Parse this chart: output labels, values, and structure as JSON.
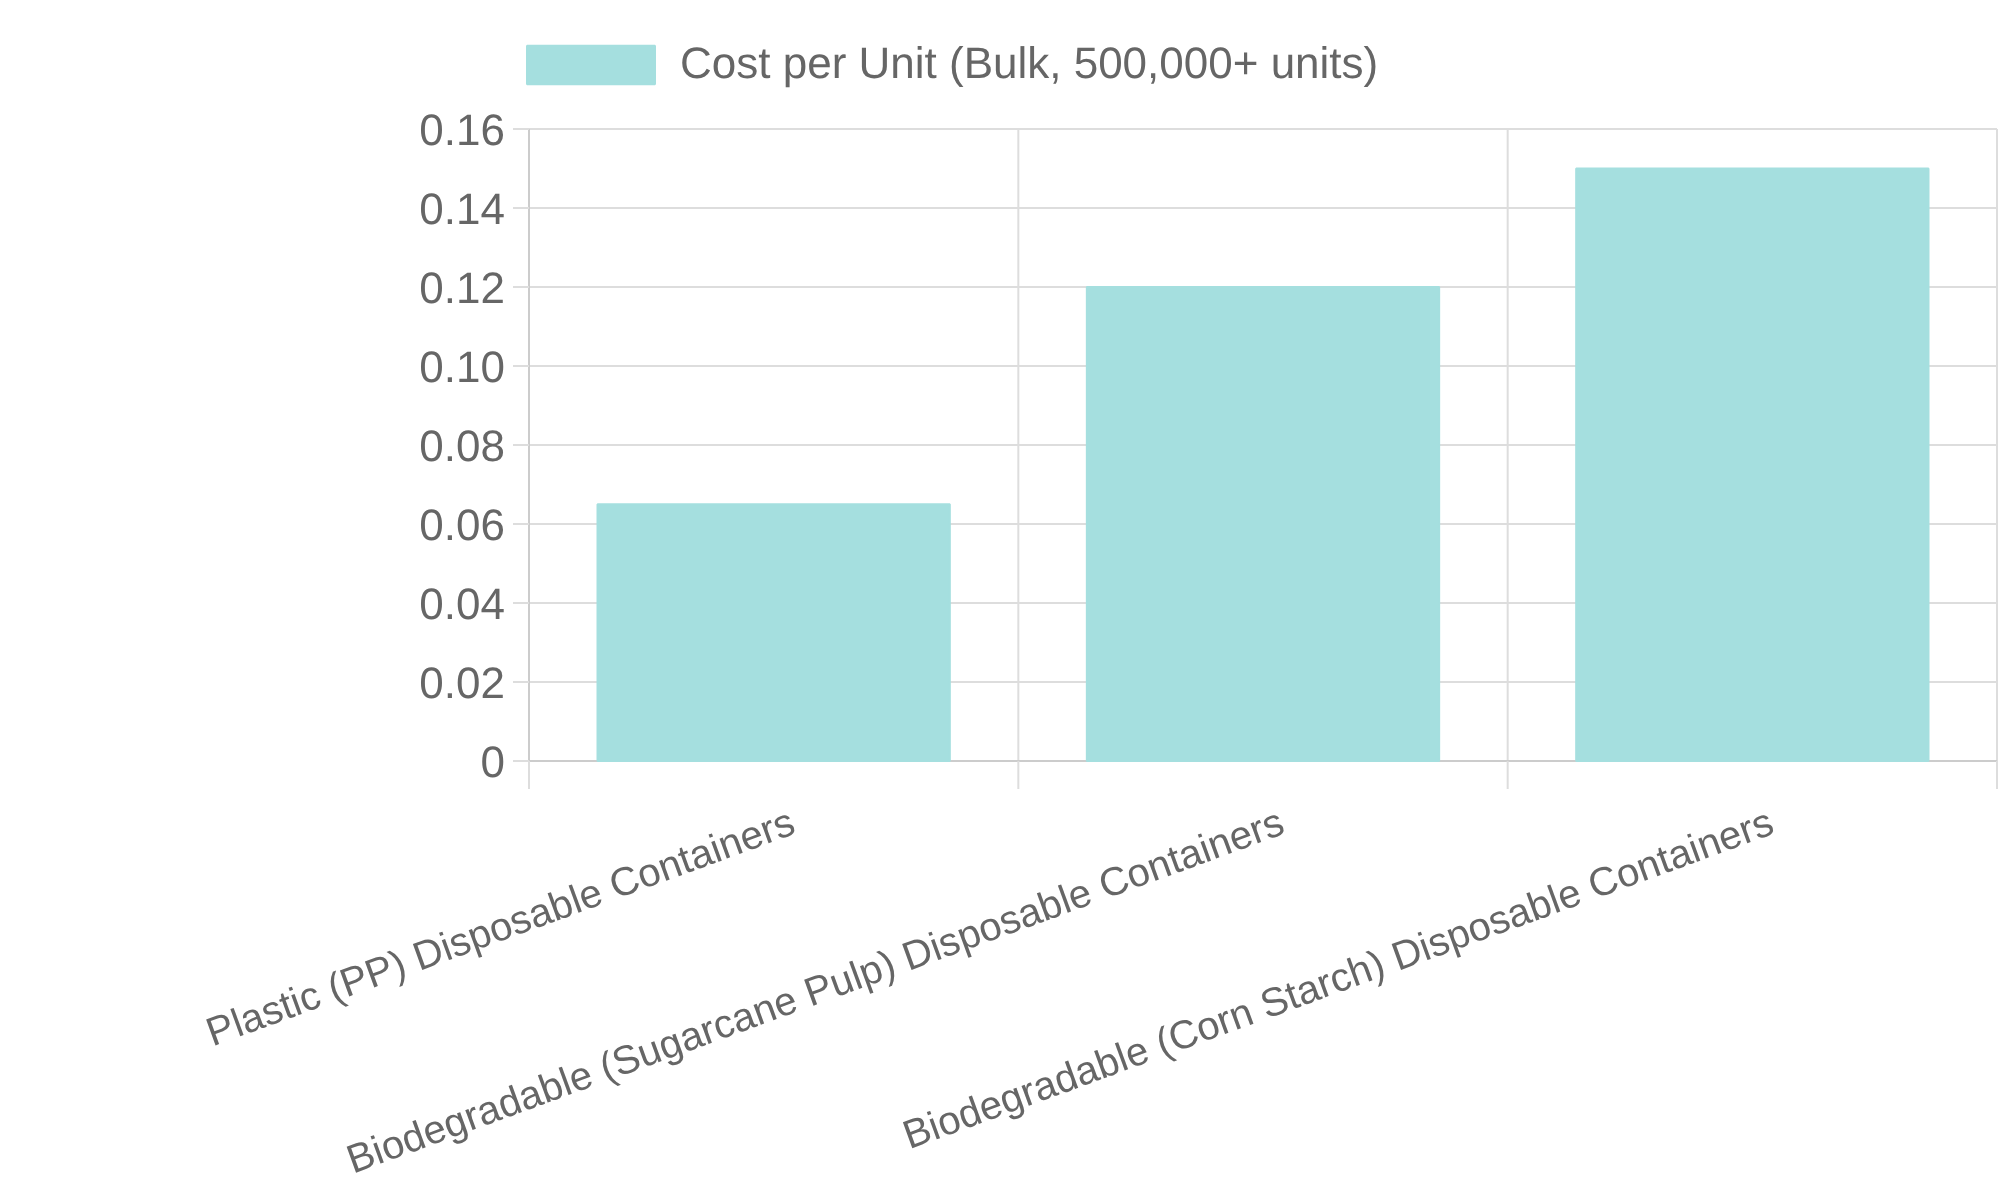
{
  "chart_data": {
    "type": "bar",
    "categories": [
      "Plastic (PP) Disposable Containers",
      "Biodegradable (Sugarcane Pulp) Disposable Containers",
      "Biodegradable (Corn Starch) Disposable Containers"
    ],
    "series": [
      {
        "name": "Cost per Unit (Bulk, 500,000+ units)",
        "color": "#a5dfdf",
        "values": [
          0.065,
          0.12,
          0.15
        ]
      }
    ],
    "ylim": [
      0,
      0.16
    ],
    "yticks": [
      0,
      {
        "value": 0.02,
        "label": "0.02"
      },
      {
        "value": 0.04,
        "label": "0.04"
      },
      {
        "value": 0.06,
        "label": "0.06"
      },
      {
        "value": 0.08,
        "label": "0.08"
      },
      {
        "value": 0.1,
        "label": "0.10"
      },
      {
        "value": 0.12,
        "label": "0.12"
      },
      {
        "value": 0.14,
        "label": "0.14"
      },
      {
        "value": 0.16,
        "label": "0.16"
      }
    ],
    "grid": true,
    "legend": "top"
  }
}
